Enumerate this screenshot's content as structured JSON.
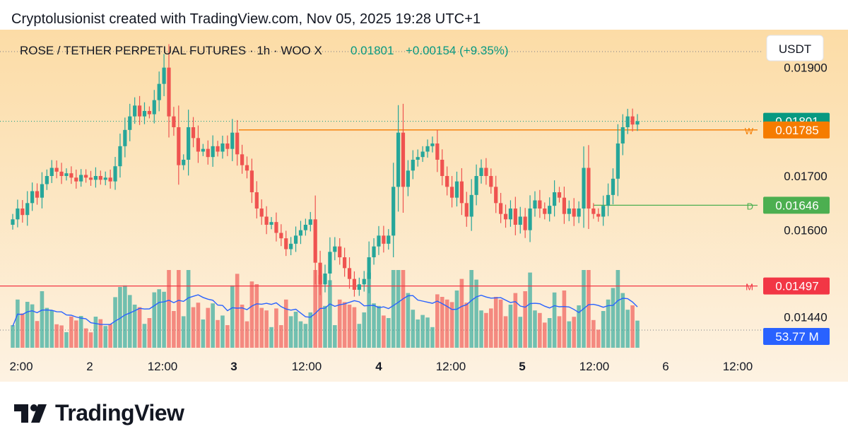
{
  "header": {
    "text": "Cryptolusionist created with TradingView.com, Nov 05, 2025 19:28 UTC+1"
  },
  "brand": {
    "name": "TradingView"
  },
  "legend": {
    "symbol": "ROSE / TETHER PERPETUAL FUTURES · 1h · WOO X",
    "price": "0.01801",
    "change": "+0.00154 (+9.35%)"
  },
  "currency": {
    "label": "USDT"
  },
  "axis": {
    "y_ticks": [
      "0.01900",
      "0.01700",
      "0.01600",
      "0.01440"
    ],
    "x_ticks": [
      "2:00",
      "2",
      "12:00",
      "3",
      "12:00",
      "4",
      "12:00",
      "5",
      "12:00",
      "6",
      "12:00"
    ]
  },
  "price_labels": [
    {
      "name": "last-price",
      "value": "0.01801",
      "color": "#089981"
    },
    {
      "name": "level-w",
      "value": "0.01785",
      "color": "#f57c00"
    },
    {
      "name": "level-d",
      "value": "0.01646",
      "color": "#4caf50"
    },
    {
      "name": "level-m",
      "value": "0.01497",
      "color": "#f23645"
    },
    {
      "name": "volume",
      "value": "53.77 M",
      "color": "#2962ff"
    }
  ],
  "levels": [
    {
      "label": "W",
      "value": 0.01785,
      "color": "#f57c00"
    },
    {
      "label": "D",
      "value": 0.01646,
      "color": "#4caf50"
    },
    {
      "label": "M",
      "value": 0.01497,
      "color": "#f23645"
    }
  ],
  "colors": {
    "up": "#26a69a",
    "down": "#ef5350",
    "ma": "#2962ff",
    "bg_top": "#fcdca6",
    "bg_bottom": "#fdf2e2"
  },
  "chart_data": {
    "type": "candlestick",
    "title": "ROSE / TETHER PERPETUAL FUTURES · 1h · WOO X",
    "ylabel": "USDT",
    "ylim": [
      0.0137,
      0.0197
    ],
    "last_price": 0.01801,
    "levels": [
      0.01785,
      0.01646,
      0.01497
    ],
    "volume_last": "53.77 M",
    "closes": [
      0.0162,
      0.0164,
      0.01628,
      0.0165,
      0.01672,
      0.0166,
      0.01685,
      0.017,
      0.01715,
      0.01708,
      0.017,
      0.01705,
      0.01697,
      0.0169,
      0.01702,
      0.01697,
      0.01693,
      0.017,
      0.01693,
      0.01697,
      0.0169,
      0.01718,
      0.01755,
      0.01785,
      0.0181,
      0.0183,
      0.0181,
      0.0182,
      0.01814,
      0.0184,
      0.0187,
      0.019,
      0.0181,
      0.0179,
      0.0172,
      0.0173,
      0.0179,
      0.0177,
      0.01745,
      0.0175,
      0.01735,
      0.01755,
      0.01745,
      0.0176,
      0.0175,
      0.0178,
      0.0174,
      0.0172,
      0.0171,
      0.0167,
      0.0164,
      0.01625,
      0.0161,
      0.01615,
      0.01595,
      0.01585,
      0.01565,
      0.01575,
      0.0159,
      0.016,
      0.0161,
      0.0162,
      0.0154,
      0.015,
      0.0152,
      0.0156,
      0.0157,
      0.0155,
      0.0153,
      0.0151,
      0.0149,
      0.015,
      0.0151,
      0.0155,
      0.0157,
      0.0159,
      0.01575,
      0.0159,
      0.0168,
      0.0178,
      0.0168,
      0.0171,
      0.0173,
      0.01735,
      0.01745,
      0.01755,
      0.0176,
      0.0173,
      0.017,
      0.0168,
      0.0166,
      0.0169,
      0.0165,
      0.01625,
      0.01665,
      0.017,
      0.01715,
      0.017,
      0.0168,
      0.0165,
      0.0163,
      0.0162,
      0.0164,
      0.0161,
      0.01625,
      0.016,
      0.0164,
      0.01655,
      0.0164,
      0.0163,
      0.01645,
      0.0167,
      0.0166,
      0.0163,
      0.0164,
      0.01625,
      0.0164,
      0.01715,
      0.0164,
      0.0163,
      0.01625,
      0.01645,
      0.01665,
      0.01695,
      0.0176,
      0.0179,
      0.0181,
      0.01795,
      0.01801
    ]
  }
}
